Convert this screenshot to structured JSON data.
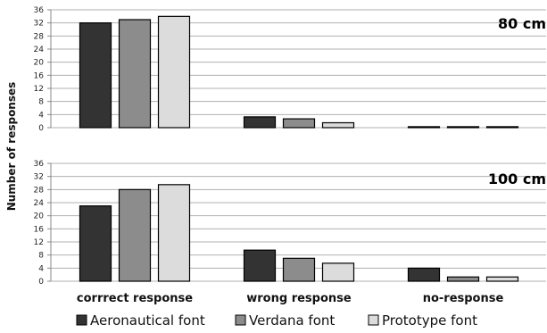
{
  "colors": {
    "Aeronautical font": "#333333",
    "Verdana font": "#8c8c8c",
    "Prototype font": "#dcdcdc"
  },
  "chart_data": [
    {
      "type": "bar",
      "title": "80 cm",
      "categories": [
        "corrrect response",
        "wrong response",
        "no-response"
      ],
      "series": [
        {
          "name": "Aeronautical font",
          "values": [
            32,
            3.3,
            0.3
          ]
        },
        {
          "name": "Verdana font",
          "values": [
            33,
            2.7,
            0.3
          ]
        },
        {
          "name": "Prototype font",
          "values": [
            34,
            1.5,
            0.3
          ]
        }
      ],
      "ylabel": "Number of responses",
      "ylim": [
        0,
        36
      ],
      "yticks": [
        0,
        4,
        8,
        12,
        16,
        20,
        24,
        28,
        32,
        36
      ],
      "grid": true,
      "legend": "bottom"
    },
    {
      "type": "bar",
      "title": "100 cm",
      "categories": [
        "corrrect response",
        "wrong response",
        "no-response"
      ],
      "series": [
        {
          "name": "Aeronautical font",
          "values": [
            23,
            9.5,
            4
          ]
        },
        {
          "name": "Verdana font",
          "values": [
            28,
            7,
            1.3
          ]
        },
        {
          "name": "Prototype font",
          "values": [
            29.5,
            5.5,
            1.3
          ]
        }
      ],
      "ylabel": "Number of responses",
      "ylim": [
        0,
        36
      ],
      "yticks": [
        0,
        4,
        8,
        12,
        16,
        20,
        24,
        28,
        32,
        36
      ],
      "grid": true,
      "legend": "bottom"
    }
  ]
}
